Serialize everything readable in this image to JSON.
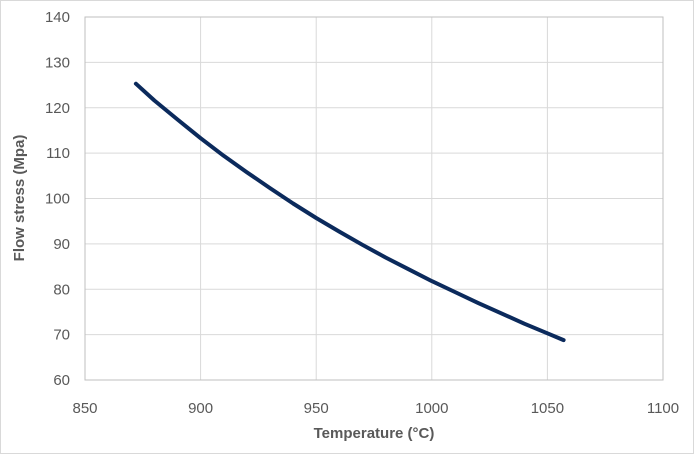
{
  "chart_data": {
    "type": "line",
    "title": "",
    "xlabel": "Temperature (°C)",
    "ylabel": "Flow stress (Mpa)",
    "xlim": [
      850,
      1100
    ],
    "ylim": [
      60,
      140
    ],
    "xticks": [
      "850",
      "900",
      "950",
      "1000",
      "1050",
      "1100"
    ],
    "yticks": [
      "60",
      "70",
      "80",
      "90",
      "100",
      "110",
      "120",
      "130",
      "140"
    ],
    "grid": true,
    "legend": "none",
    "series": [
      {
        "color": "#0b2a5c",
        "x": [
          872,
          880,
          890,
          900,
          910,
          920,
          930,
          940,
          950,
          960,
          970,
          980,
          990,
          1000,
          1010,
          1020,
          1030,
          1040,
          1050,
          1057
        ],
        "y": [
          125.3,
          121.6,
          117.4,
          113.3,
          109.4,
          105.8,
          102.3,
          98.9,
          95.7,
          92.7,
          89.8,
          87.0,
          84.4,
          81.8,
          79.4,
          77.0,
          74.7,
          72.4,
          70.3,
          68.8
        ]
      }
    ]
  }
}
